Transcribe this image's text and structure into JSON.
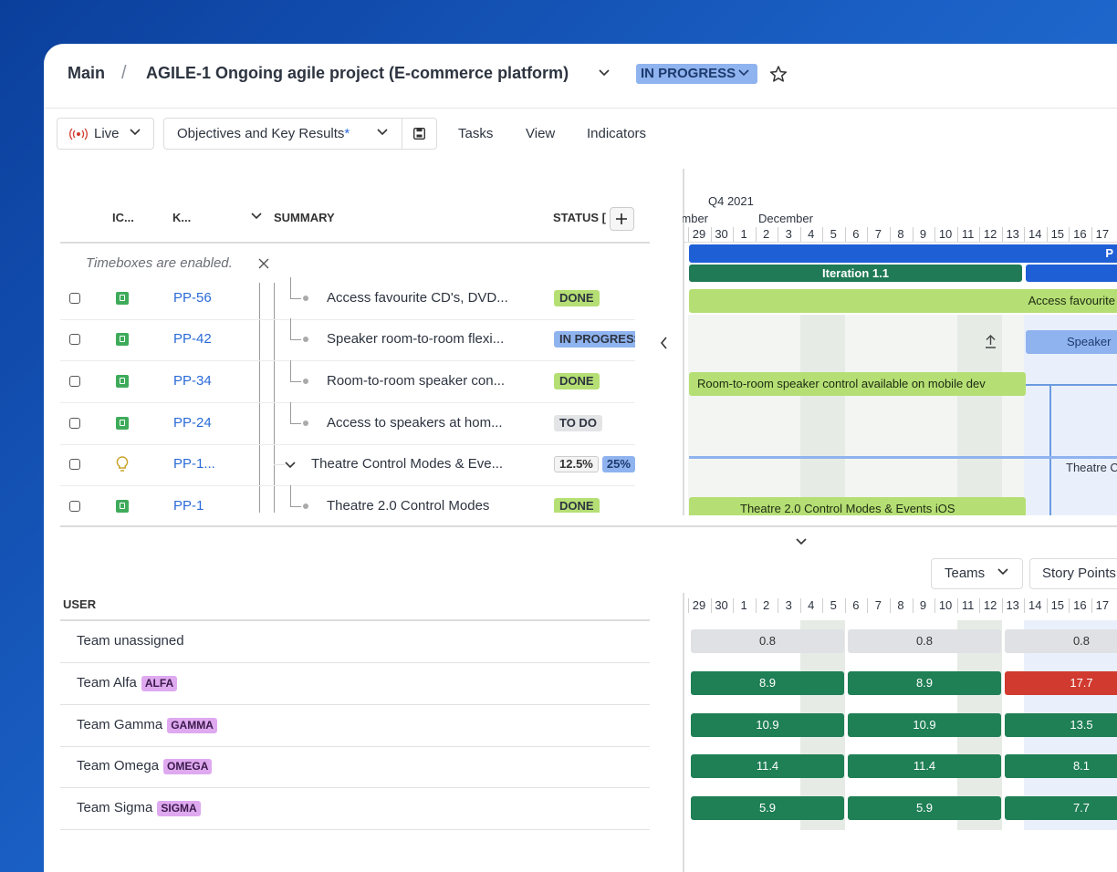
{
  "header": {
    "breadcrumb": "Main",
    "separator": "/",
    "project": "AGILE-1 Ongoing agile project (E-commerce platform)",
    "status": "IN PROGRESS"
  },
  "toolbar": {
    "live": "Live",
    "view_select": "Objectives and Key Results",
    "modified_marker": "*",
    "tabs": [
      "Tasks",
      "View",
      "Indicators"
    ]
  },
  "table": {
    "columns": [
      "IC...",
      "K...",
      "SUMMARY",
      "STATUS ["
    ],
    "notice": "Timeboxes are enabled.",
    "rows": [
      {
        "key": "PP-56",
        "summary": "Access favourite CD's, DVD...",
        "status": "DONE"
      },
      {
        "key": "PP-42",
        "summary": "Speaker room-to-room flexi...",
        "status": "IN PROGRESS"
      },
      {
        "key": "PP-34",
        "summary": "Room-to-room speaker con...",
        "status": "DONE"
      },
      {
        "key": "PP-24",
        "summary": "Access to speakers at hom...",
        "status": "TO DO"
      },
      {
        "key": "PP-1...",
        "summary": "Theatre Control Modes & Eve...",
        "progress": [
          "12.5%",
          "25%"
        ]
      },
      {
        "key": "PP-1",
        "summary": "Theatre 2.0 Control Modes",
        "status": "DONE"
      }
    ]
  },
  "timeline": {
    "quarter": "Q4 2021",
    "months": [
      "November",
      "December"
    ],
    "days": [
      29,
      30,
      1,
      2,
      3,
      4,
      5,
      6,
      7,
      8,
      9,
      10,
      11,
      12,
      13,
      14,
      15,
      16,
      17
    ],
    "bars": [
      "P",
      "Iteration 1.1",
      "Access favourite",
      "Speaker",
      "Room-to-room speaker control available on mobile dev",
      "Theatre C",
      "Theatre 2.0 Control Modes & Events iOS"
    ]
  },
  "capacity": {
    "group_by": "Teams",
    "measure": "Story Points",
    "column": "USER",
    "teams": [
      {
        "name": "Team unassigned",
        "values": [
          0.8,
          0.8,
          0.8
        ],
        "colors": [
          "#dfe1e4",
          "#dfe1e4",
          "#dfe1e4"
        ]
      },
      {
        "name": "Team Alfa",
        "tag": "ALFA",
        "values": [
          8.9,
          8.9,
          17.7
        ],
        "colors": [
          "#1f7f55",
          "#1f7f55",
          "#d13a2f"
        ]
      },
      {
        "name": "Team Gamma",
        "tag": "GAMMA",
        "values": [
          10.9,
          10.9,
          13.5
        ],
        "colors": [
          "#1f7f55",
          "#1f7f55",
          "#1f7f55"
        ]
      },
      {
        "name": "Team Omega",
        "tag": "OMEGA",
        "values": [
          11.4,
          11.4,
          8.1
        ],
        "colors": [
          "#1f7f55",
          "#1f7f55",
          "#1f7f55"
        ]
      },
      {
        "name": "Team Sigma",
        "tag": "SIGMA",
        "values": [
          5.9,
          5.9,
          7.7
        ],
        "colors": [
          "#1f7f55",
          "#1f7f55",
          "#1f7f55"
        ]
      }
    ]
  }
}
